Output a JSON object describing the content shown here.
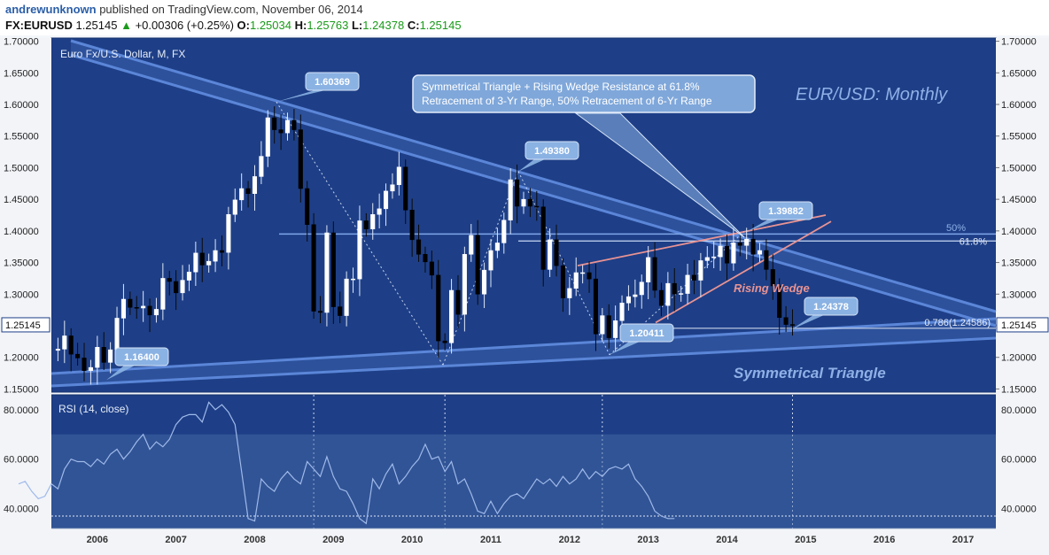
{
  "header": {
    "author": "andrewunknown",
    "published_text": "published on TradingView.com, November 06, 2014",
    "symbol": "FX:EURUSD",
    "last": "1.25145",
    "change_arrow": "▲",
    "change": "+0.00306 (+0.25%)",
    "open_label": "O:",
    "open": "1.25034",
    "high_label": "H:",
    "high": "1.25763",
    "low_label": "L:",
    "low": "1.24378",
    "close_label": "C:",
    "close": "1.25145"
  },
  "colors": {
    "panel_bg": "#1e3f87",
    "panel_border": "#15306a",
    "axis_bg": "#f2f4f8",
    "candle_up": "#ffffff",
    "candle_down": "#000000",
    "triangle_band": "#5b86d8",
    "wedge": "#e99393",
    "rsi_line": "#9fb9ea",
    "label_box": "#8ab2e3"
  },
  "chart_data": [
    {
      "type": "candlestick",
      "title": "Euro Fx/U.S. Dollar, M, FX",
      "watermark": "EUR/USD: Monthly",
      "ylim": [
        1.145,
        1.705
      ],
      "x_range": [
        "2005-06",
        "2017-06"
      ],
      "y_ticks": [
        "1.70000",
        "1.65000",
        "1.60000",
        "1.55000",
        "1.50000",
        "1.45000",
        "1.40000",
        "1.35000",
        "1.30000",
        "1.25000",
        "1.20000",
        "1.15000"
      ],
      "last_price_tag": "1.25145",
      "closes": [
        [
          "2005-06",
          1.211
        ],
        [
          "2005-07",
          1.213
        ],
        [
          "2005-08",
          1.234
        ],
        [
          "2005-09",
          1.205
        ],
        [
          "2005-10",
          1.199
        ],
        [
          "2005-11",
          1.179
        ],
        [
          "2005-12",
          1.184
        ],
        [
          "2006-01",
          1.216
        ],
        [
          "2006-02",
          1.192
        ],
        [
          "2006-03",
          1.212
        ],
        [
          "2006-04",
          1.262
        ],
        [
          "2006-05",
          1.292
        ],
        [
          "2006-06",
          1.279
        ],
        [
          "2006-07",
          1.278
        ],
        [
          "2006-08",
          1.281
        ],
        [
          "2006-09",
          1.267
        ],
        [
          "2006-10",
          1.276
        ],
        [
          "2006-11",
          1.325
        ],
        [
          "2006-12",
          1.32
        ],
        [
          "2007-01",
          1.302
        ],
        [
          "2007-02",
          1.322
        ],
        [
          "2007-03",
          1.335
        ],
        [
          "2007-04",
          1.365
        ],
        [
          "2007-05",
          1.346
        ],
        [
          "2007-06",
          1.352
        ],
        [
          "2007-07",
          1.369
        ],
        [
          "2007-08",
          1.366
        ],
        [
          "2007-09",
          1.426
        ],
        [
          "2007-10",
          1.449
        ],
        [
          "2007-11",
          1.467
        ],
        [
          "2007-12",
          1.459
        ],
        [
          "2008-01",
          1.486
        ],
        [
          "2008-02",
          1.518
        ],
        [
          "2008-03",
          1.579
        ],
        [
          "2008-04",
          1.56
        ],
        [
          "2008-05",
          1.555
        ],
        [
          "2008-06",
          1.575
        ],
        [
          "2008-07",
          1.56
        ],
        [
          "2008-08",
          1.467
        ],
        [
          "2008-09",
          1.41
        ],
        [
          "2008-10",
          1.273
        ],
        [
          "2008-11",
          1.271
        ],
        [
          "2008-12",
          1.397
        ],
        [
          "2009-01",
          1.28
        ],
        [
          "2009-02",
          1.266
        ],
        [
          "2009-03",
          1.324
        ],
        [
          "2009-04",
          1.324
        ],
        [
          "2009-05",
          1.416
        ],
        [
          "2009-06",
          1.403
        ],
        [
          "2009-07",
          1.426
        ],
        [
          "2009-08",
          1.435
        ],
        [
          "2009-09",
          1.463
        ],
        [
          "2009-10",
          1.473
        ],
        [
          "2009-11",
          1.501
        ],
        [
          "2009-12",
          1.433
        ],
        [
          "2010-01",
          1.386
        ],
        [
          "2010-02",
          1.363
        ],
        [
          "2010-03",
          1.351
        ],
        [
          "2010-04",
          1.33
        ],
        [
          "2010-05",
          1.226
        ],
        [
          "2010-06",
          1.223
        ],
        [
          "2010-07",
          1.306
        ],
        [
          "2010-08",
          1.268
        ],
        [
          "2010-09",
          1.363
        ],
        [
          "2010-10",
          1.393
        ],
        [
          "2010-11",
          1.3
        ],
        [
          "2010-12",
          1.338
        ],
        [
          "2011-01",
          1.369
        ],
        [
          "2011-02",
          1.381
        ],
        [
          "2011-03",
          1.417
        ],
        [
          "2011-04",
          1.481
        ],
        [
          "2011-05",
          1.439
        ],
        [
          "2011-06",
          1.45
        ],
        [
          "2011-07",
          1.439
        ],
        [
          "2011-08",
          1.438
        ],
        [
          "2011-09",
          1.339
        ],
        [
          "2011-10",
          1.386
        ],
        [
          "2011-11",
          1.345
        ],
        [
          "2011-12",
          1.294
        ],
        [
          "2012-01",
          1.309
        ],
        [
          "2012-02",
          1.334
        ],
        [
          "2012-03",
          1.334
        ],
        [
          "2012-04",
          1.324
        ],
        [
          "2012-05",
          1.237
        ],
        [
          "2012-06",
          1.266
        ],
        [
          "2012-07",
          1.231
        ],
        [
          "2012-08",
          1.258
        ],
        [
          "2012-09",
          1.286
        ],
        [
          "2012-10",
          1.296
        ],
        [
          "2012-11",
          1.299
        ],
        [
          "2012-12",
          1.319
        ],
        [
          "2013-01",
          1.358
        ],
        [
          "2013-02",
          1.306
        ],
        [
          "2013-03",
          1.282
        ],
        [
          "2013-04",
          1.317
        ],
        [
          "2013-05",
          1.3
        ],
        [
          "2013-06",
          1.301
        ],
        [
          "2013-07",
          1.33
        ],
        [
          "2013-08",
          1.322
        ],
        [
          "2013-09",
          1.353
        ],
        [
          "2013-10",
          1.358
        ],
        [
          "2013-11",
          1.359
        ],
        [
          "2013-12",
          1.376
        ],
        [
          "2014-01",
          1.349
        ],
        [
          "2014-02",
          1.381
        ],
        [
          "2014-03",
          1.377
        ],
        [
          "2014-04",
          1.387
        ],
        [
          "2014-05",
          1.363
        ],
        [
          "2014-06",
          1.369
        ],
        [
          "2014-07",
          1.339
        ],
        [
          "2014-08",
          1.313
        ],
        [
          "2014-09",
          1.263
        ],
        [
          "2014-10",
          1.252
        ],
        [
          "2014-11",
          1.2515
        ]
      ],
      "labels": [
        "1.60369",
        "1.49380",
        "1.39882",
        "1.24378",
        "1.20411",
        "1.16400"
      ],
      "annotation_lines": [
        "Symmetrical Triangle + Rising Wedge Resistance at 61.8%",
        "Retracement of 3-Yr Range, 50% Retracement of 6-Yr Range"
      ],
      "fib_labels": [
        "50%",
        "61.8%",
        "0.786(1.24586)"
      ],
      "pattern_labels": [
        "Rising Wedge",
        "Symmetrical Triangle"
      ]
    },
    {
      "type": "line",
      "title": "RSI (14, close)",
      "ylim": [
        32,
        86
      ],
      "y_ticks": [
        "80.0000",
        "60.0000",
        "40.0000"
      ],
      "bands": {
        "upper": 70,
        "lower": 30
      },
      "series": [
        {
          "name": "RSI (14, close)",
          "values": [
            50,
            51,
            47,
            44,
            45,
            50,
            48,
            56,
            60,
            59,
            59,
            57,
            60,
            58,
            62,
            64,
            60,
            63,
            67,
            70,
            64,
            67,
            65,
            68,
            74,
            77,
            78,
            78,
            75,
            83,
            80,
            82,
            79,
            74,
            55,
            36,
            35,
            52,
            49,
            47,
            52,
            55,
            52,
            50,
            59,
            56,
            53,
            61,
            53,
            48,
            47,
            42,
            36,
            34,
            52,
            48,
            54,
            58,
            50,
            53,
            57,
            60,
            66,
            60,
            61,
            55,
            59,
            50,
            52,
            46,
            39,
            38,
            43,
            38,
            42,
            45,
            46,
            44,
            48,
            52,
            50,
            52,
            49,
            53,
            50,
            52,
            56,
            52,
            55,
            53,
            56,
            57,
            56,
            58,
            52,
            49,
            45,
            39,
            37,
            36,
            36
          ]
        }
      ],
      "x_ticks": [
        "2006",
        "2007",
        "2008",
        "2009",
        "2010",
        "2011",
        "2012",
        "2013",
        "2014",
        "2015",
        "2016",
        "2017"
      ]
    }
  ]
}
